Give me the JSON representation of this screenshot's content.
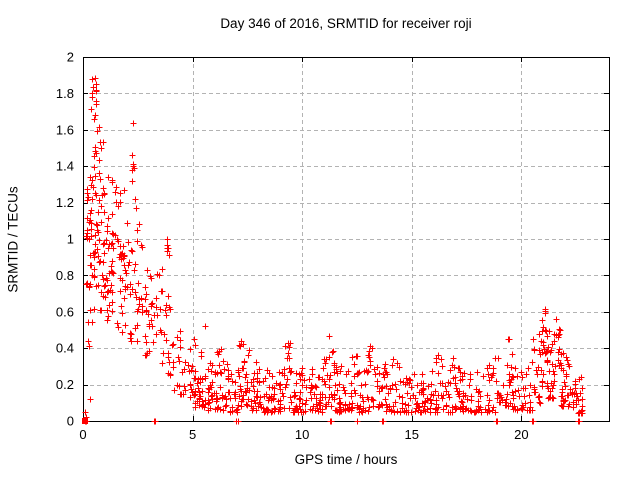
{
  "chart_data": {
    "type": "scatter",
    "title": "Day 346 of 2016, SRMTID for receiver roji",
    "xlabel": "GPS time / hours",
    "ylabel": "SRMTID / TECUs",
    "xlim": [
      0,
      24
    ],
    "ylim": [
      0,
      2
    ],
    "xticks": [
      0,
      5,
      10,
      15,
      20
    ],
    "xtick_labels": [
      "0",
      "5",
      "10",
      "15",
      "20"
    ],
    "yticks": [
      0,
      0.2,
      0.4,
      0.6,
      0.8,
      1,
      1.2,
      1.4,
      1.6,
      1.8,
      2
    ],
    "ytick_labels": [
      "0",
      "0.2",
      "0.4",
      "0.6",
      "0.8",
      "1",
      "1.2",
      "1.4",
      "1.6",
      "1.8",
      "2"
    ],
    "grid": true,
    "grid_style": "dashed-gray",
    "legend": "none",
    "marker": {
      "glyph": "plus",
      "color": "#ff0000",
      "size": 7
    },
    "colors": {
      "points": "#ff0000",
      "grid": "#b3b3b3",
      "axis": "#000000",
      "background": "#ffffff"
    },
    "description": "Dense scatter of ionospheric SRMTID values: high noisy values (up to ~1.9 TECU) during hours 0-3 decaying to a low band (~0.05-0.3 TECU) from hour 5 to 20, small bumps near hours 7.3, 11.3, 13.5, 16.5 and 19.3, a late rise to ~0.63 around hours 21-21.7, data ending near hour 22.8, with isolated points on the zero line.",
    "density_bins": [
      [
        0.12,
        0.38,
        20,
        0.72,
        1.35,
        1
      ],
      [
        0.18,
        0.38,
        4,
        0.35,
        0.65,
        1
      ],
      [
        0.38,
        0.62,
        7,
        1.8,
        1.92,
        1
      ],
      [
        0.35,
        0.78,
        9,
        1.55,
        1.78,
        1
      ],
      [
        0.35,
        0.92,
        9,
        1.38,
        1.55,
        1
      ],
      [
        0.3,
        1.0,
        14,
        1.22,
        1.38,
        1
      ],
      [
        0.25,
        1.05,
        36,
        0.78,
        1.22,
        1
      ],
      [
        0.4,
        1.05,
        12,
        0.52,
        0.78,
        1
      ],
      [
        1.05,
        1.55,
        32,
        0.55,
        1.15,
        1
      ],
      [
        1.05,
        1.55,
        6,
        1.15,
        1.35,
        1
      ],
      [
        1.55,
        2.05,
        28,
        0.45,
        0.98,
        1
      ],
      [
        1.55,
        2.05,
        6,
        0.98,
        1.3,
        1
      ],
      [
        2.2,
        2.35,
        5,
        1.25,
        1.52,
        1
      ],
      [
        2.05,
        2.55,
        10,
        0.85,
        1.25,
        1
      ],
      [
        2.05,
        2.6,
        18,
        0.42,
        0.85,
        1
      ],
      [
        2.6,
        3.1,
        22,
        0.35,
        0.97,
        1.2
      ],
      [
        3.1,
        3.6,
        20,
        0.28,
        0.85,
        1.3
      ],
      [
        3.75,
        3.98,
        6,
        0.6,
        1.0,
        1
      ],
      [
        3.55,
        4.1,
        16,
        0.25,
        0.7,
        1.3
      ],
      [
        4.1,
        4.6,
        16,
        0.15,
        0.55,
        1.3
      ],
      [
        4.6,
        5.1,
        20,
        0.1,
        0.48,
        1.5
      ],
      [
        5.1,
        5.6,
        26,
        0.07,
        0.45,
        1.8
      ],
      [
        5.6,
        6.1,
        26,
        0.06,
        0.32,
        1.8
      ],
      [
        6.1,
        6.6,
        26,
        0.06,
        0.4,
        1.8
      ],
      [
        6.6,
        7.1,
        26,
        0.05,
        0.3,
        1.8
      ],
      [
        7.1,
        7.6,
        30,
        0.08,
        0.45,
        1.7
      ],
      [
        7.6,
        8.1,
        26,
        0.06,
        0.33,
        1.8
      ],
      [
        8.1,
        9.1,
        48,
        0.05,
        0.28,
        1.8
      ],
      [
        9.1,
        9.5,
        20,
        0.07,
        0.43,
        1.7
      ],
      [
        9.5,
        10.5,
        48,
        0.05,
        0.3,
        1.8
      ],
      [
        10.5,
        11.0,
        24,
        0.05,
        0.32,
        1.8
      ],
      [
        11.0,
        11.5,
        30,
        0.08,
        0.47,
        1.6
      ],
      [
        11.5,
        12.0,
        26,
        0.05,
        0.3,
        1.8
      ],
      [
        12.0,
        12.5,
        24,
        0.06,
        0.38,
        1.8
      ],
      [
        12.5,
        13.0,
        24,
        0.05,
        0.3,
        1.8
      ],
      [
        13.0,
        13.7,
        30,
        0.07,
        0.42,
        1.7
      ],
      [
        13.7,
        14.5,
        32,
        0.05,
        0.35,
        1.8
      ],
      [
        14.5,
        16.0,
        64,
        0.05,
        0.28,
        1.8
      ],
      [
        16.0,
        17.0,
        42,
        0.05,
        0.38,
        1.8
      ],
      [
        17.0,
        18.5,
        60,
        0.05,
        0.3,
        1.8
      ],
      [
        18.5,
        19.1,
        24,
        0.05,
        0.35,
        1.8
      ],
      [
        19.1,
        19.6,
        22,
        0.08,
        0.47,
        1.6
      ],
      [
        19.6,
        20.5,
        34,
        0.06,
        0.3,
        1.8
      ],
      [
        20.5,
        21.0,
        26,
        0.1,
        0.5,
        1.6
      ],
      [
        20.9,
        21.15,
        14,
        0.3,
        0.63,
        1.2
      ],
      [
        21.15,
        21.5,
        30,
        0.12,
        0.5,
        1.6
      ],
      [
        21.5,
        21.75,
        14,
        0.3,
        0.62,
        1.2
      ],
      [
        21.75,
        22.3,
        32,
        0.08,
        0.38,
        1.8
      ],
      [
        22.3,
        22.85,
        30,
        0.04,
        0.25,
        1.8
      ]
    ],
    "extra_points": [
      [
        0.3,
        0.12
      ],
      [
        2.27,
        1.64
      ],
      [
        0.1,
        0.05
      ],
      [
        0.12,
        0.02
      ],
      [
        3.82,
        0.95
      ],
      [
        3.85,
        1.0
      ],
      [
        5.55,
        0.52
      ],
      [
        2.3,
        1.4
      ]
    ],
    "zero_line_points": [
      0.08,
      0.1,
      0.12,
      3.25,
      3.3,
      7.0,
      7.05,
      11.25,
      11.3,
      12.5,
      13.65,
      13.7,
      18.85,
      18.9,
      20.5,
      20.55,
      22.6,
      22.65
    ],
    "origin_square": {
      "x": 0.1,
      "y": 0
    }
  }
}
